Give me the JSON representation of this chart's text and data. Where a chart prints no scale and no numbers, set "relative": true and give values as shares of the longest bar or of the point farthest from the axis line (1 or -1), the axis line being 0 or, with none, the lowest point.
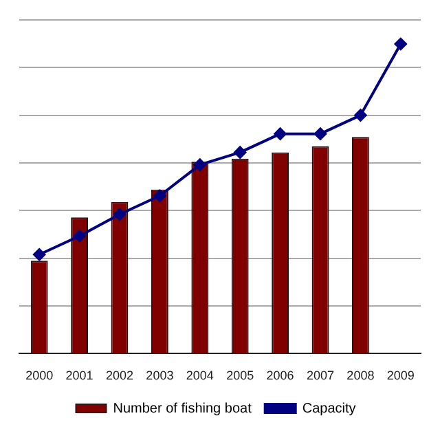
{
  "chart_data": {
    "type": "bar",
    "relative": true,
    "categories": [
      "2000",
      "2001",
      "2002",
      "2003",
      "2004",
      "2005",
      "2006",
      "2007",
      "2008",
      "2009"
    ],
    "series": [
      {
        "name": "Number of fishing boat",
        "color": "#800000",
        "values": [
          0.3,
          0.44,
          0.49,
          0.53,
          0.62,
          0.63,
          0.65,
          0.67,
          0.7,
          null
        ]
      },
      {
        "name": "Capacity",
        "type": "line",
        "color": "#000080",
        "marker": "diamond",
        "values": [
          0.32,
          0.38,
          0.45,
          0.51,
          0.61,
          0.65,
          0.71,
          0.71,
          0.77,
          1
        ]
      }
    ],
    "grid": "y",
    "legend": "bottom"
  }
}
